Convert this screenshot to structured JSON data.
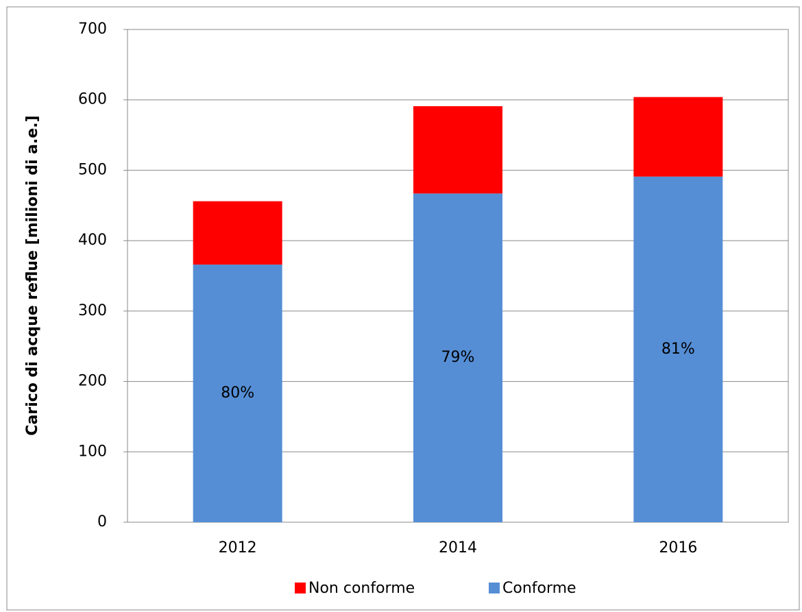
{
  "chart_data": {
    "type": "stacked_bar",
    "y_label": "Carico di acque reflue [milioni di a.e.]",
    "categories": [
      "2012",
      "2014",
      "2016"
    ],
    "series": [
      {
        "name": "Conforme",
        "color": "#558ed5",
        "values": [
          366,
          467,
          491
        ]
      },
      {
        "name": "Non conforme",
        "color": "#ff0000",
        "values": [
          90,
          124,
          113
        ]
      }
    ],
    "annotations": [
      "80%",
      "79%",
      "81%"
    ],
    "ylim": [
      0,
      700
    ],
    "yticks": [
      0,
      100,
      200,
      300,
      400,
      500,
      600,
      700
    ],
    "grid": true
  }
}
